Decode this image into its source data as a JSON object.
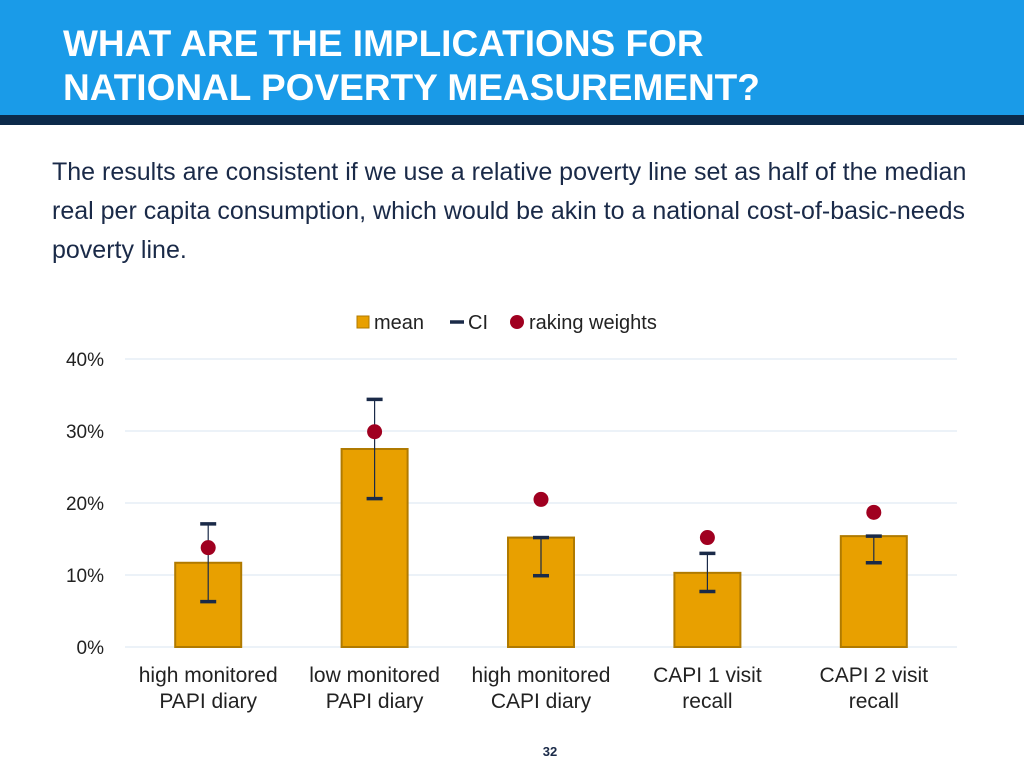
{
  "slide": {
    "title_line1": "WHAT ARE THE IMPLICATIONS FOR",
    "title_line2": "NATIONAL POVERTY MEASUREMENT?",
    "body_text": "The results are consistent if we use a relative poverty line set as half of the median real per capita consumption, which would be akin to a national cost-of-basic-needs poverty line.",
    "page_number": "32"
  },
  "colors": {
    "header": "#1a9be8",
    "header_rule": "#0c2a4a",
    "bar_fill": "#e8a000",
    "bar_stroke": "#b07a00",
    "ci": "#1a2a48",
    "raking": "#a00020"
  },
  "chart_data": {
    "type": "bar",
    "categories": [
      [
        "high monitored",
        "PAPI diary"
      ],
      [
        "low monitored",
        "PAPI diary"
      ],
      [
        "high monitored",
        "CAPI diary"
      ],
      [
        "CAPI 1 visit",
        "recall"
      ],
      [
        "CAPI 2 visit",
        "recall"
      ]
    ],
    "legend": [
      {
        "key": "mean",
        "label": "mean"
      },
      {
        "key": "ci",
        "label": "CI"
      },
      {
        "key": "raking",
        "label": "raking weights"
      }
    ],
    "legend_position": "top-center",
    "series": [
      {
        "name": "mean",
        "values": [
          11.7,
          27.5,
          15.2,
          10.3,
          15.4
        ]
      },
      {
        "name": "CI",
        "lower": [
          6.3,
          20.6,
          9.9,
          7.7,
          11.7
        ],
        "upper": [
          17.1,
          34.4,
          15.2,
          13.0,
          15.4
        ]
      },
      {
        "name": "raking weights",
        "values": [
          13.8,
          29.9,
          20.5,
          15.2,
          18.7
        ]
      }
    ],
    "yticks": [
      "0%",
      "10%",
      "20%",
      "30%",
      "40%"
    ],
    "ylim": [
      0,
      40
    ],
    "grid": true,
    "xlabel": "",
    "ylabel": ""
  }
}
